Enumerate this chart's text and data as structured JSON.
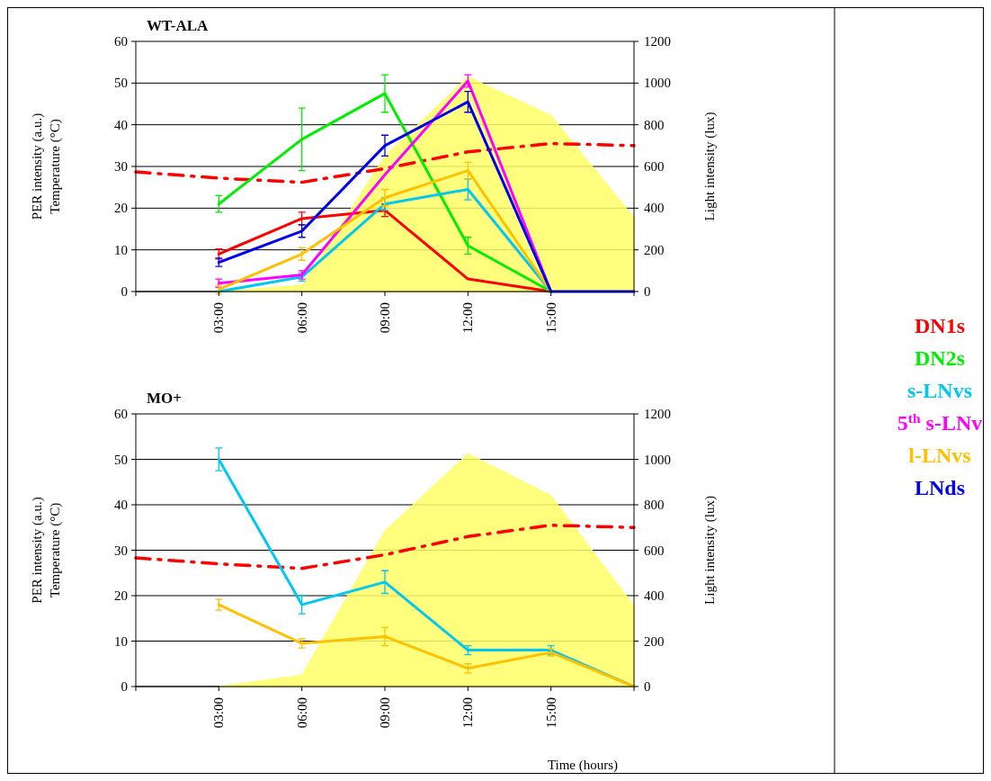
{
  "chart_data": [
    {
      "type": "line",
      "title": "WT-ALA",
      "ylabel": "PER intensity (a.u.)\nTemperature (°C)",
      "y2label": "Light intensity (lux)",
      "xlim": [
        0,
        18
      ],
      "xticks": [
        {
          "value": 0,
          "label": null
        },
        {
          "value": 3,
          "label": "03:00"
        },
        {
          "value": 6,
          "label": "06:00"
        },
        {
          "value": 9,
          "label": "09:00"
        },
        {
          "value": 12,
          "label": "12:00"
        },
        {
          "value": 15,
          "label": "15:00"
        },
        {
          "value": 18,
          "label": null
        }
      ],
      "ylim": [
        0,
        60
      ],
      "yticks": [
        0,
        10,
        20,
        30,
        40,
        50,
        60
      ],
      "y2lim": [
        0,
        1200
      ],
      "y2ticks": [
        0,
        200,
        400,
        600,
        800,
        1000,
        1200
      ],
      "grid": "y",
      "legend": "right",
      "series": [
        {
          "type": "area",
          "axis": "y2",
          "color": "#ffff66",
          "x": [
            3,
            6,
            9,
            12,
            15,
            18
          ],
          "values": [
            0,
            30,
            650,
            1030,
            845,
            355
          ]
        },
        {
          "type": "line",
          "line_style": "dashed",
          "color": "#ff0000",
          "x": [
            0,
            3,
            6,
            9,
            12,
            15,
            18
          ],
          "values": [
            28.7,
            27.2,
            26.2,
            29.5,
            33.5,
            35.5,
            35
          ]
        },
        {
          "name": "DN1s",
          "color": "#ff0000",
          "x": [
            3,
            6,
            9,
            12,
            15
          ],
          "values": [
            9,
            17.5,
            19.5,
            3,
            0
          ],
          "errors": [
            1.2,
            1.5,
            1.5,
            null,
            null
          ]
        },
        {
          "name": "DN2s",
          "color": "#00ee00",
          "x": [
            3,
            6,
            9,
            12,
            15
          ],
          "values": [
            21,
            36.5,
            47.5,
            11,
            0
          ],
          "errors": [
            2,
            7.5,
            4.5,
            2,
            null
          ]
        },
        {
          "name": "s-LNvs",
          "color": "#00c8f0",
          "x": [
            3,
            6,
            9,
            12,
            15
          ],
          "values": [
            0,
            3.5,
            21,
            24.5,
            0
          ],
          "errors": [
            null,
            1,
            1.5,
            2.5,
            null
          ]
        },
        {
          "name": "5$^{th}$ s-LNv",
          "color": "#ff00ff",
          "x": [
            3,
            6,
            9,
            12,
            15
          ],
          "values": [
            2,
            4,
            28,
            50.5,
            0
          ],
          "errors": [
            1,
            1,
            null,
            1.5,
            null
          ]
        },
        {
          "name": "l-LNvs",
          "color": "#ffc000",
          "x": [
            3,
            6,
            9,
            12,
            15
          ],
          "values": [
            0.5,
            9,
            22.5,
            29,
            0
          ],
          "errors": [
            1,
            1.5,
            2,
            2,
            null
          ]
        },
        {
          "name": "LNds",
          "color": "#0000ee",
          "x": [
            3,
            6,
            9,
            12,
            15,
            18
          ],
          "values": [
            7,
            14.5,
            35,
            45.5,
            0,
            0
          ],
          "errors": [
            1,
            1.5,
            2.5,
            2.5,
            null,
            null
          ]
        }
      ]
    },
    {
      "type": "line",
      "title": "MO+",
      "xlabel": "Time (hours)",
      "ylabel": "PER intensity (a.u.)\nTemperature (°C)",
      "y2label": "Light intensity (lux)",
      "xlim": [
        0,
        18
      ],
      "xticks": [
        {
          "value": 0,
          "label": null
        },
        {
          "value": 3,
          "label": "03:00"
        },
        {
          "value": 6,
          "label": "06:00"
        },
        {
          "value": 9,
          "label": "09:00"
        },
        {
          "value": 12,
          "label": "12:00"
        },
        {
          "value": 15,
          "label": "15:00"
        },
        {
          "value": 18,
          "label": null
        }
      ],
      "ylim": [
        0,
        60
      ],
      "yticks": [
        0,
        10,
        20,
        30,
        40,
        50,
        60
      ],
      "y2lim": [
        0,
        1200
      ],
      "y2ticks": [
        0,
        200,
        400,
        600,
        800,
        1000,
        1200
      ],
      "grid": "y",
      "series": [
        {
          "type": "area",
          "axis": "y2",
          "color": "#ffff66",
          "x": [
            3,
            6,
            9,
            12,
            15,
            18
          ],
          "values": [
            0,
            50,
            685,
            1025,
            840,
            355
          ]
        },
        {
          "type": "line",
          "line_style": "dashed",
          "color": "#ff0000",
          "x": [
            0,
            3,
            6,
            9,
            12,
            15,
            18
          ],
          "values": [
            28.3,
            27,
            26,
            29,
            33,
            35.5,
            35
          ]
        },
        {
          "color": "#00c8f0",
          "x": [
            3,
            6,
            9,
            12,
            15,
            18
          ],
          "values": [
            50,
            18,
            23,
            8,
            8,
            0
          ],
          "errors": [
            2.5,
            2,
            2.5,
            1,
            1,
            null
          ]
        },
        {
          "color": "#ffc000",
          "x": [
            3,
            6,
            9,
            12,
            15,
            18
          ],
          "values": [
            18,
            9.5,
            11,
            4,
            7.5,
            0
          ],
          "errors": [
            1.2,
            1,
            2,
            1,
            0.8,
            null
          ]
        }
      ]
    }
  ]
}
